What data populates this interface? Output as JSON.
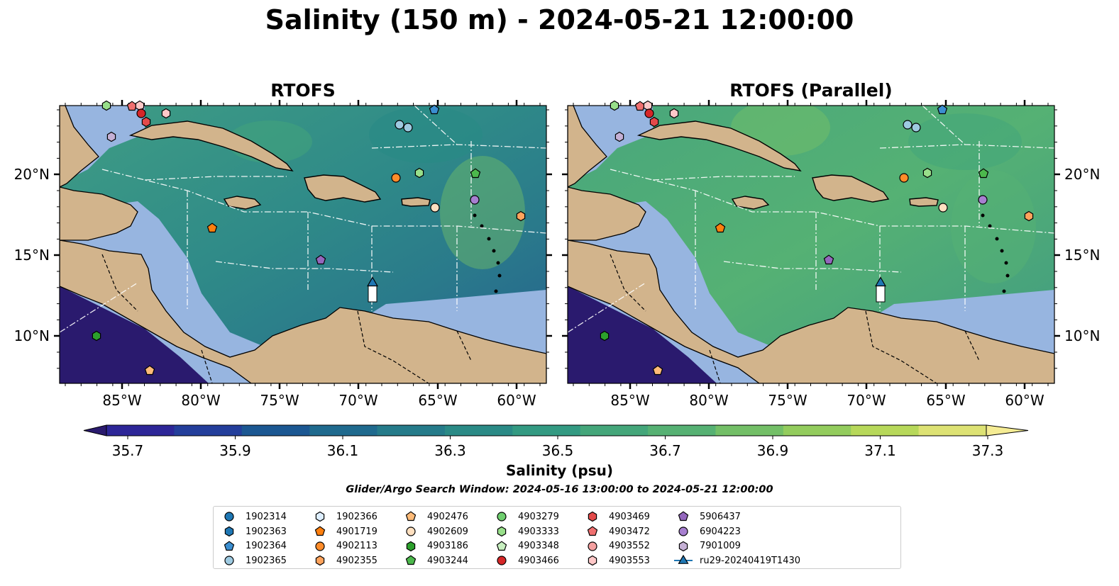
{
  "title": "Salinity (150 m) - 2024-05-21 12:00:00",
  "panels": [
    {
      "title": "RTOFS"
    },
    {
      "title": "RTOFS (Parallel)"
    }
  ],
  "axes": {
    "lon_ticks": [
      "85°W",
      "80°W",
      "75°W",
      "70°W",
      "65°W",
      "60°W"
    ],
    "lat_ticks": [
      "20°N",
      "15°N",
      "10°N"
    ]
  },
  "colorbar": {
    "label": "Salinity (psu)",
    "tick_labels": [
      "35.7",
      "35.9",
      "36.1",
      "36.3",
      "36.5",
      "36.7",
      "36.9",
      "37.1",
      "37.3"
    ],
    "colors": [
      "#2a1a6e",
      "#2d2698",
      "#233e9b",
      "#1b5792",
      "#1f6a8e",
      "#257b8a",
      "#2a8a86",
      "#339a82",
      "#44a67a",
      "#56b173",
      "#73bf67",
      "#93cc5d",
      "#b7d85a",
      "#dde274",
      "#f5ec94"
    ]
  },
  "search_window": "Glider/Argo Search Window: 2024-05-16 13:00:00 to 2024-05-21 12:00:00",
  "legend": [
    {
      "label": "1902314",
      "shape": "circle",
      "color": "#1f77b4"
    },
    {
      "label": "1902363",
      "shape": "hexagon",
      "color": "#1f77b4"
    },
    {
      "label": "1902364",
      "shape": "pentagon",
      "color": "#3b8ed0"
    },
    {
      "label": "1902365",
      "shape": "circle",
      "color": "#9ecae1"
    },
    {
      "label": "1902366",
      "shape": "hexagon",
      "color": "#ddeeff"
    },
    {
      "label": "4901719",
      "shape": "pentagon",
      "color": "#ff7f0e"
    },
    {
      "label": "4902113",
      "shape": "circle",
      "color": "#ff8c2a"
    },
    {
      "label": "4902355",
      "shape": "hexagon",
      "color": "#ffa35c"
    },
    {
      "label": "4902476",
      "shape": "pentagon",
      "color": "#ffbb78"
    },
    {
      "label": "4902609",
      "shape": "circle",
      "color": "#ffe0c0"
    },
    {
      "label": "4903186",
      "shape": "hexagon",
      "color": "#2ca02c"
    },
    {
      "label": "4903244",
      "shape": "pentagon",
      "color": "#4cb84c"
    },
    {
      "label": "4903279",
      "shape": "circle",
      "color": "#6fcf6f"
    },
    {
      "label": "4903333",
      "shape": "hexagon",
      "color": "#98df8a"
    },
    {
      "label": "4903348",
      "shape": "pentagon",
      "color": "#c8f0c0"
    },
    {
      "label": "4903466",
      "shape": "circle",
      "color": "#d62728"
    },
    {
      "label": "4903469",
      "shape": "hexagon",
      "color": "#e34a4a"
    },
    {
      "label": "4903472",
      "shape": "pentagon",
      "color": "#f07070"
    },
    {
      "label": "4903552",
      "shape": "circle",
      "color": "#f4a0a0"
    },
    {
      "label": "4903553",
      "shape": "hexagon",
      "color": "#ffc8c8"
    },
    {
      "label": "5906437",
      "shape": "pentagon",
      "color": "#9467bd"
    },
    {
      "label": "6904223",
      "shape": "circle",
      "color": "#a77fd0"
    },
    {
      "label": "7901009",
      "shape": "hexagon",
      "color": "#c5b0d5"
    },
    {
      "label": "ru29-20240419T1430",
      "shape": "triangle-line",
      "color": "#1f77b4"
    }
  ]
}
